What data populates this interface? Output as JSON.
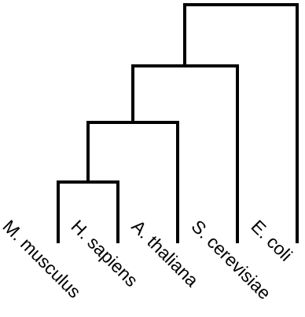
{
  "tree": {
    "line_color": "#000000",
    "leaves": [
      {
        "id": "mmus",
        "label": "M. musculus"
      },
      {
        "id": "hsap",
        "label": "H. sapiens"
      },
      {
        "id": "atha",
        "label": "A. thaliana"
      },
      {
        "id": "scer",
        "label": "S. cerevisiae"
      },
      {
        "id": "ecol",
        "label": "E. coli"
      }
    ],
    "topology": "((((M. musculus,H. sapiens),A. thaliana),S. cerevisiae),E. coli)"
  }
}
